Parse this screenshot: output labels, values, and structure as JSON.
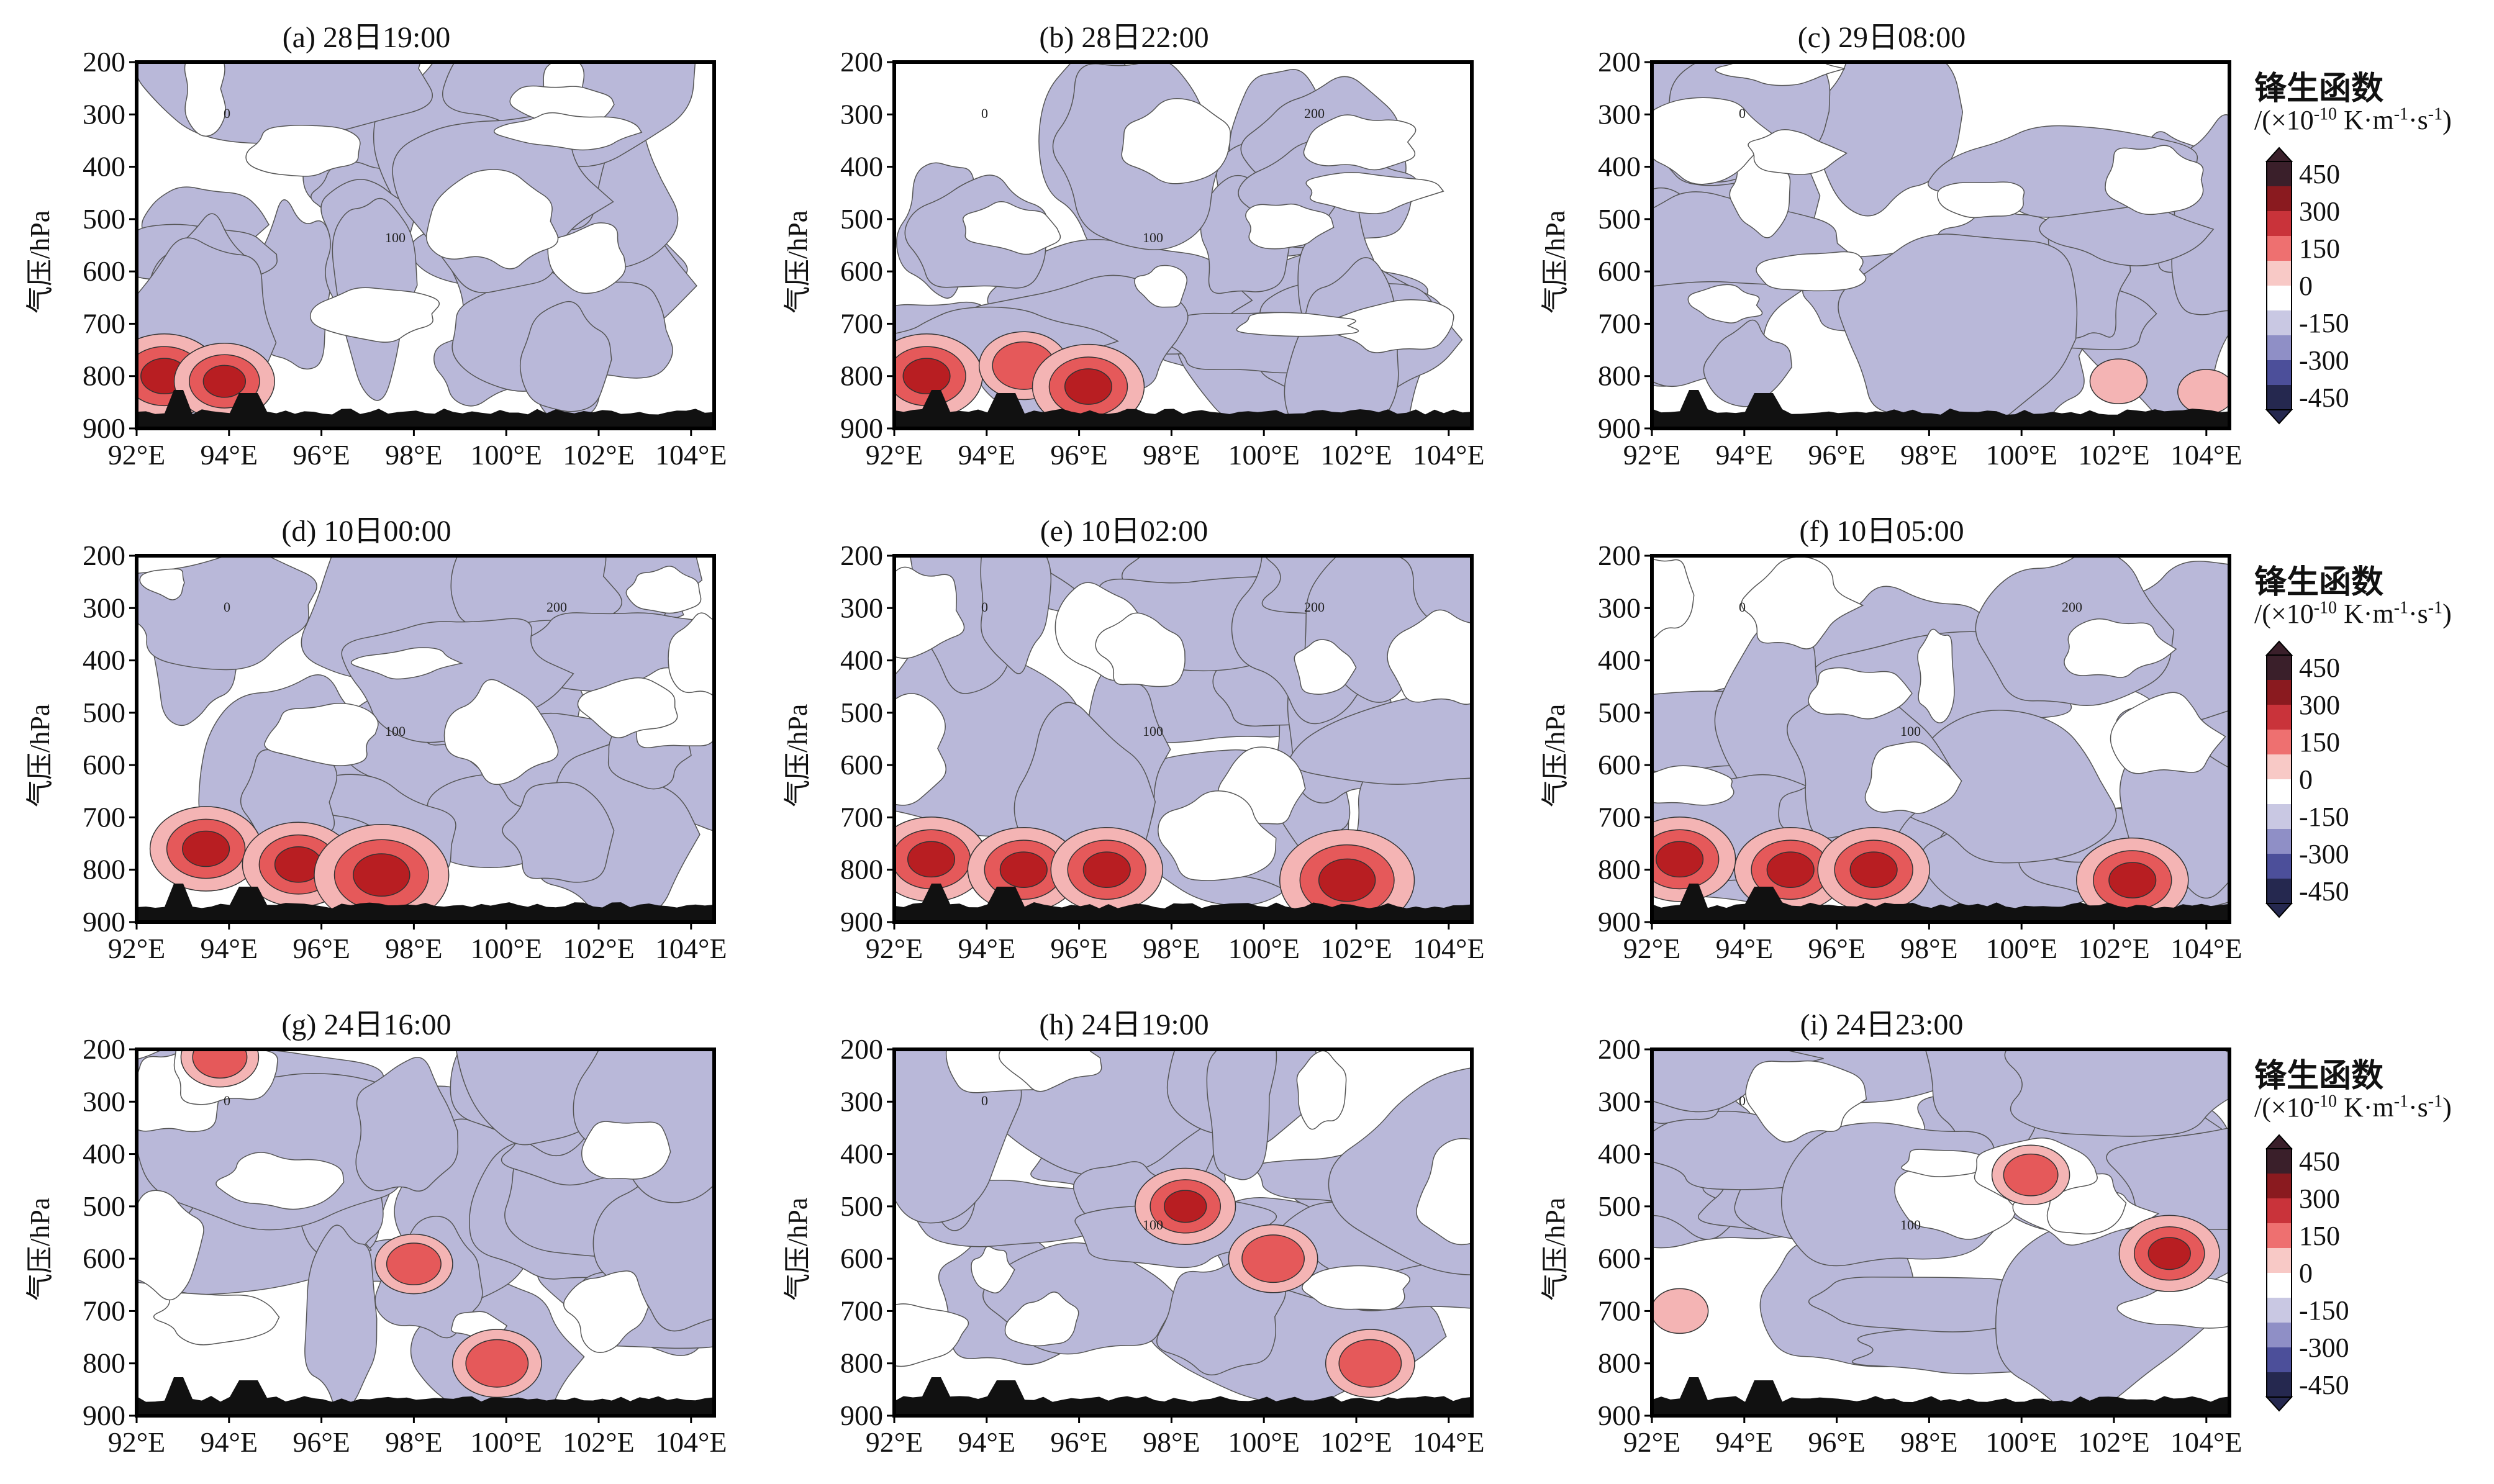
{
  "panels": [
    {
      "id": "a",
      "title": "(a) 28日19:00"
    },
    {
      "id": "b",
      "title": "(b) 28日22:00"
    },
    {
      "id": "c",
      "title": "(c) 29日08:00"
    },
    {
      "id": "d",
      "title": "(d) 10日00:00"
    },
    {
      "id": "e",
      "title": "(e) 10日02:00"
    },
    {
      "id": "f",
      "title": "(f) 10日05:00"
    },
    {
      "id": "g",
      "title": "(g) 24日16:00"
    },
    {
      "id": "h",
      "title": "(h) 24日19:00"
    },
    {
      "id": "i",
      "title": "(i) 24日23:00"
    }
  ],
  "axes": {
    "ylabel": "气压/hPa",
    "yticks": [
      "200",
      "300",
      "400",
      "500",
      "600",
      "700",
      "800",
      "900"
    ],
    "xticks": [
      "92°E",
      "94°E",
      "96°E",
      "98°E",
      "100°E",
      "102°E",
      "104°E"
    ]
  },
  "colorbar": {
    "title": "锋生函数",
    "unit_prefix": "/(×10",
    "unit_exp1": "-10",
    "unit_mid": " K·m",
    "unit_exp2": "-1",
    "unit_dot": "·s",
    "unit_exp3": "-1",
    "unit_suffix": ")",
    "tick_labels": [
      "450",
      "300",
      "150",
      "0",
      "-150",
      "-300",
      "-450"
    ]
  },
  "colors": {
    "negative": "#b9b8d9",
    "positive_light": "#f4b4b4",
    "positive_mid": "#e5595a",
    "positive_dark": "#b81e22",
    "terrain": "#111111",
    "cbar": [
      "#3a1f2a",
      "#8a1a1f",
      "#c9333a",
      "#ee7070",
      "#f8c9c6",
      "#ffffff",
      "#c9c8e3",
      "#8f8fc6",
      "#4c4f9a",
      "#25284f"
    ]
  },
  "chart_data": [
    {
      "type": "heatmap",
      "panel": "a",
      "xlim": [
        92,
        104.5
      ],
      "ylim": [
        900,
        200
      ],
      "contour_labels": [
        "0",
        "100"
      ],
      "max_regions": [
        {
          "lon": 92.6,
          "p": 800,
          "value": 300
        },
        {
          "lon": 93.9,
          "p": 810,
          "value": 250
        }
      ]
    },
    {
      "type": "heatmap",
      "panel": "b",
      "xlim": [
        92,
        104.5
      ],
      "ylim": [
        900,
        200
      ],
      "contour_labels": [
        "0",
        "100",
        "200"
      ],
      "max_regions": [
        {
          "lon": 92.7,
          "p": 800,
          "value": 300
        },
        {
          "lon": 94.8,
          "p": 780,
          "value": 200
        },
        {
          "lon": 96.2,
          "p": 820,
          "value": 300
        }
      ]
    },
    {
      "type": "heatmap",
      "panel": "c",
      "xlim": [
        92,
        104.5
      ],
      "ylim": [
        900,
        200
      ],
      "contour_labels": [
        "0"
      ],
      "max_regions": [
        {
          "lon": 102.1,
          "p": 810,
          "value": 60
        },
        {
          "lon": 104.0,
          "p": 830,
          "value": 60
        }
      ]
    },
    {
      "type": "heatmap",
      "panel": "d",
      "xlim": [
        92,
        104.5
      ],
      "ylim": [
        900,
        200
      ],
      "contour_labels": [
        "0",
        "100",
        "200"
      ],
      "max_regions": [
        {
          "lon": 93.5,
          "p": 760,
          "value": 300
        },
        {
          "lon": 95.5,
          "p": 790,
          "value": 300
        },
        {
          "lon": 97.3,
          "p": 810,
          "value": 400
        }
      ]
    },
    {
      "type": "heatmap",
      "panel": "e",
      "xlim": [
        92,
        104.5
      ],
      "ylim": [
        900,
        200
      ],
      "contour_labels": [
        "0",
        "100",
        "200"
      ],
      "max_regions": [
        {
          "lon": 92.8,
          "p": 780,
          "value": 300
        },
        {
          "lon": 94.8,
          "p": 800,
          "value": 300
        },
        {
          "lon": 96.6,
          "p": 800,
          "value": 300
        },
        {
          "lon": 101.8,
          "p": 820,
          "value": 400
        }
      ]
    },
    {
      "type": "heatmap",
      "panel": "f",
      "xlim": [
        92,
        104.5
      ],
      "ylim": [
        900,
        200
      ],
      "contour_labels": [
        "0",
        "100",
        "200"
      ],
      "max_regions": [
        {
          "lon": 92.6,
          "p": 780,
          "value": 300
        },
        {
          "lon": 95.0,
          "p": 800,
          "value": 300
        },
        {
          "lon": 96.8,
          "p": 800,
          "value": 300
        },
        {
          "lon": 102.4,
          "p": 820,
          "value": 300
        }
      ]
    },
    {
      "type": "heatmap",
      "panel": "g",
      "xlim": [
        92,
        104.5
      ],
      "ylim": [
        900,
        200
      ],
      "contour_labels": [
        "0"
      ],
      "max_regions": [
        {
          "lon": 98.0,
          "p": 610,
          "value": 150
        },
        {
          "lon": 99.8,
          "p": 800,
          "value": 200
        },
        {
          "lon": 93.8,
          "p": 215,
          "value": 150
        }
      ]
    },
    {
      "type": "heatmap",
      "panel": "h",
      "xlim": [
        92,
        104.5
      ],
      "ylim": [
        900,
        200
      ],
      "contour_labels": [
        "0",
        "100"
      ],
      "max_regions": [
        {
          "lon": 98.3,
          "p": 500,
          "value": 250
        },
        {
          "lon": 100.2,
          "p": 600,
          "value": 200
        },
        {
          "lon": 102.3,
          "p": 800,
          "value": 200
        }
      ]
    },
    {
      "type": "heatmap",
      "panel": "i",
      "xlim": [
        92,
        104.5
      ],
      "ylim": [
        900,
        200
      ],
      "contour_labels": [
        "0",
        "100"
      ],
      "max_regions": [
        {
          "lon": 100.2,
          "p": 440,
          "value": 150
        },
        {
          "lon": 103.2,
          "p": 590,
          "value": 250
        },
        {
          "lon": 92.6,
          "p": 700,
          "value": 60
        }
      ]
    }
  ]
}
